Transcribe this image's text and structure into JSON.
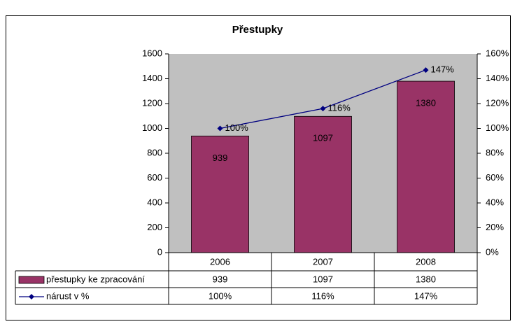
{
  "chart_data": {
    "type": "bar",
    "title": "Přestupky",
    "categories": [
      "2006",
      "2007",
      "2008"
    ],
    "series": [
      {
        "name": "přestupky ke zpracování",
        "type": "bar",
        "color": "#993366",
        "values": [
          939,
          1097,
          1380
        ]
      },
      {
        "name": "nárust v %",
        "type": "line",
        "axis": "y2",
        "color": "#000080",
        "values": [
          100,
          116,
          147
        ],
        "value_labels": [
          "100%",
          "116%",
          "147%"
        ]
      }
    ],
    "ylim": [
      0,
      1600
    ],
    "yticks": [
      0,
      200,
      400,
      600,
      800,
      1000,
      1200,
      1400,
      1600
    ],
    "y2lim": [
      0,
      160
    ],
    "y2ticks": [
      {
        "value": 0,
        "label": "0%"
      },
      {
        "value": 20,
        "label": "20%"
      },
      {
        "value": 40,
        "label": "40%"
      },
      {
        "value": 60,
        "label": "60%"
      },
      {
        "value": 80,
        "label": "80%"
      },
      {
        "value": 100,
        "label": "100%"
      },
      {
        "value": 120,
        "label": "120%"
      },
      {
        "value": 140,
        "label": "140%"
      },
      {
        "value": 160,
        "label": "160%"
      }
    ],
    "plot_background": "#c0c0c0"
  }
}
